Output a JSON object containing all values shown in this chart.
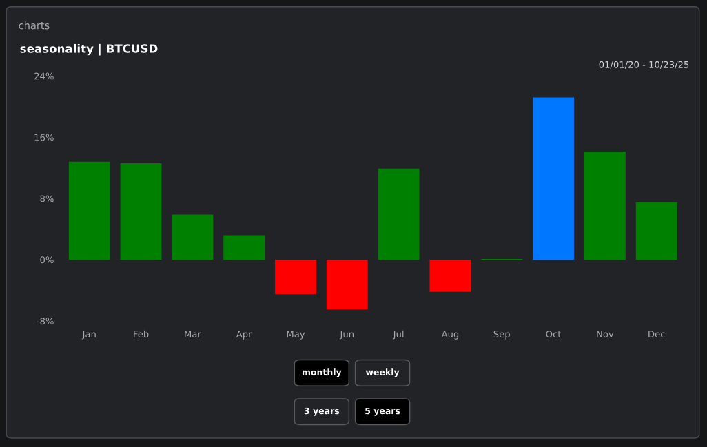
{
  "chart_data": {
    "type": "bar",
    "title": "seasonality | BTCUSD",
    "categories": [
      "Jan",
      "Feb",
      "Mar",
      "Apr",
      "May",
      "Jun",
      "Jul",
      "Aug",
      "Sep",
      "Oct",
      "Nov",
      "Dec"
    ],
    "values": [
      12.8,
      12.6,
      5.9,
      3.2,
      -4.5,
      -6.5,
      11.9,
      -4.2,
      0.1,
      21.2,
      14.1,
      7.5
    ],
    "colors": [
      "#008000",
      "#008000",
      "#008000",
      "#008000",
      "#ff0000",
      "#ff0000",
      "#008000",
      "#ff0000",
      "#008000",
      "#0077ff",
      "#008000",
      "#008000"
    ],
    "ylim": [
      -8,
      24
    ],
    "yticks": [
      {
        "value": -8,
        "label": "-8%"
      },
      {
        "value": 0,
        "label": "0%"
      },
      {
        "value": 8,
        "label": "8%"
      },
      {
        "value": 16,
        "label": "16%"
      },
      {
        "value": 24,
        "label": "24%"
      }
    ],
    "grid": false,
    "annotations": [
      "charts",
      "01/01/20 - 10/23/25",
      "monthly",
      "weekly",
      "3 years",
      "5 years"
    ]
  }
}
